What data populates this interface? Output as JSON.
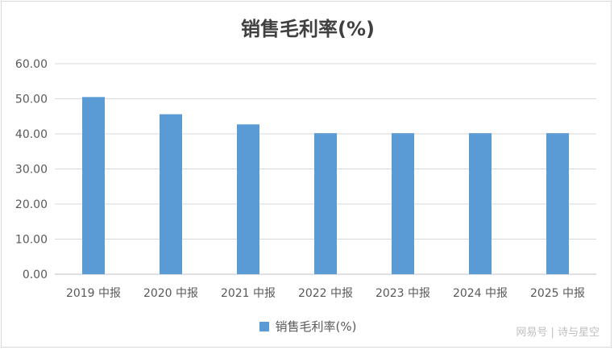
{
  "chart_data": {
    "type": "bar",
    "title": "销售毛利率(%)",
    "categories": [
      "2019 中报",
      "2020 中报",
      "2021 中报",
      "2022 中报",
      "2023 中报",
      "2024 中报",
      "2025 中报"
    ],
    "series": [
      {
        "name": "销售毛利率(%)",
        "values": [
          50.5,
          45.6,
          42.7,
          40.2,
          40.2,
          40.2,
          40.2
        ]
      }
    ],
    "ylim": [
      0,
      60
    ],
    "yticks": [
      "0.00",
      "10.00",
      "20.00",
      "30.00",
      "40.00",
      "50.00",
      "60.00"
    ],
    "grid": true,
    "legend_position": "bottom",
    "bar_color": "#5b9bd5"
  },
  "watermark": "网易号 | 诗与星空"
}
